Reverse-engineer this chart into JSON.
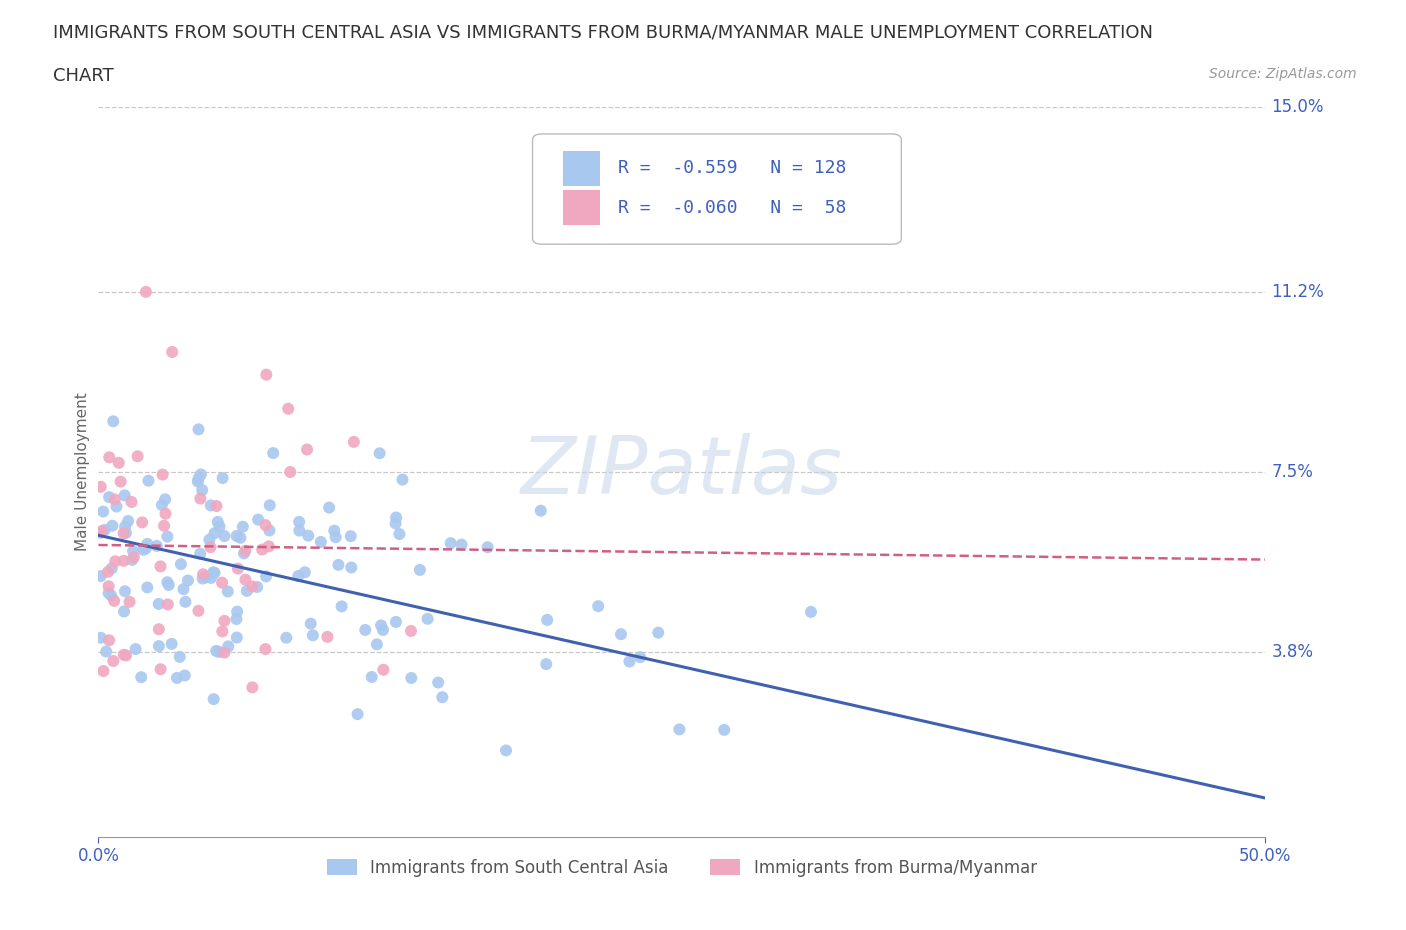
{
  "title_line1": "IMMIGRANTS FROM SOUTH CENTRAL ASIA VS IMMIGRANTS FROM BURMA/MYANMAR MALE UNEMPLOYMENT CORRELATION",
  "title_line2": "CHART",
  "source_text": "Source: ZipAtlas.com",
  "ylabel": "Male Unemployment",
  "xlim": [
    0.0,
    0.5
  ],
  "ylim": [
    0.0,
    0.15
  ],
  "yticks": [
    0.038,
    0.075,
    0.112,
    0.15
  ],
  "ytick_labels": [
    "3.8%",
    "7.5%",
    "11.2%",
    "15.0%"
  ],
  "xticks": [
    0.0,
    0.5
  ],
  "xtick_labels": [
    "0.0%",
    "50.0%"
  ],
  "legend_label1": "R =  -0.559   N = 128",
  "legend_label2": "R =  -0.060   N =  58",
  "series1_color": "#a8c8f0",
  "series2_color": "#f0a8c0",
  "trend1_color": "#4060b0",
  "trend2_color": "#d06080",
  "watermark": "ZIPatlas",
  "legend_color": "#4060c0",
  "axis_tick_color": "#4060c0",
  "background_color": "#ffffff",
  "grid_color": "#c8c8c8",
  "title_fontsize": 13,
  "axis_label_fontsize": 11,
  "tick_fontsize": 12
}
